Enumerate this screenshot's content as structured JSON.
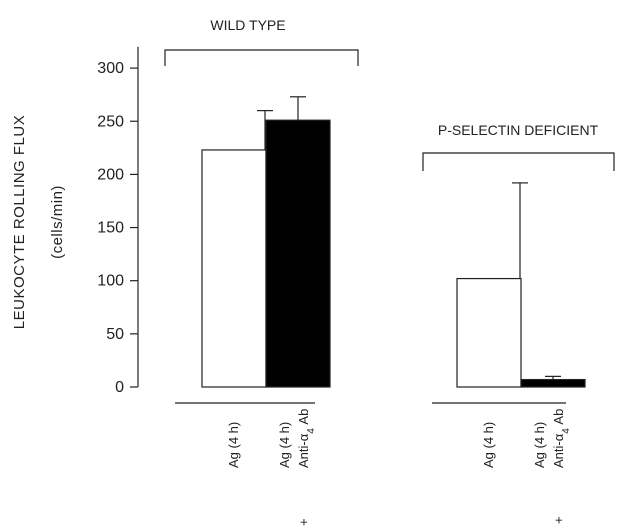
{
  "chart_data": {
    "type": "bar",
    "ylabel": "LEUKOCYTE ROLLING FLUX",
    "ylabel_unit": "(cells/min)",
    "ylim": [
      0,
      320
    ],
    "yticks": [
      0,
      50,
      100,
      150,
      200,
      250,
      300
    ],
    "grid": false,
    "groups": [
      {
        "label": "WILD TYPE",
        "bars": [
          {
            "line1": "Ag (4 h)",
            "line2": "",
            "prefix": "",
            "value": 223,
            "error": 37,
            "color": "#ffffff"
          },
          {
            "line1": "Ag (4 h)",
            "line2": "Anti-α",
            "sub": "4",
            "suffix": " Ab",
            "prefix": "+",
            "value": 251,
            "error": 22,
            "color": "#000000"
          }
        ]
      },
      {
        "label": "P-SELECTIN DEFICIENT",
        "bars": [
          {
            "line1": "Ag (4 h)",
            "line2": "",
            "prefix": "",
            "value": 102,
            "error": 90,
            "color": "#ffffff"
          },
          {
            "line1": "Ag (4 h)",
            "line2": "Anti-α",
            "sub": "4",
            "suffix": " Ab",
            "prefix": "+",
            "value": 7,
            "error": 3,
            "color": "#000000"
          }
        ]
      }
    ]
  }
}
